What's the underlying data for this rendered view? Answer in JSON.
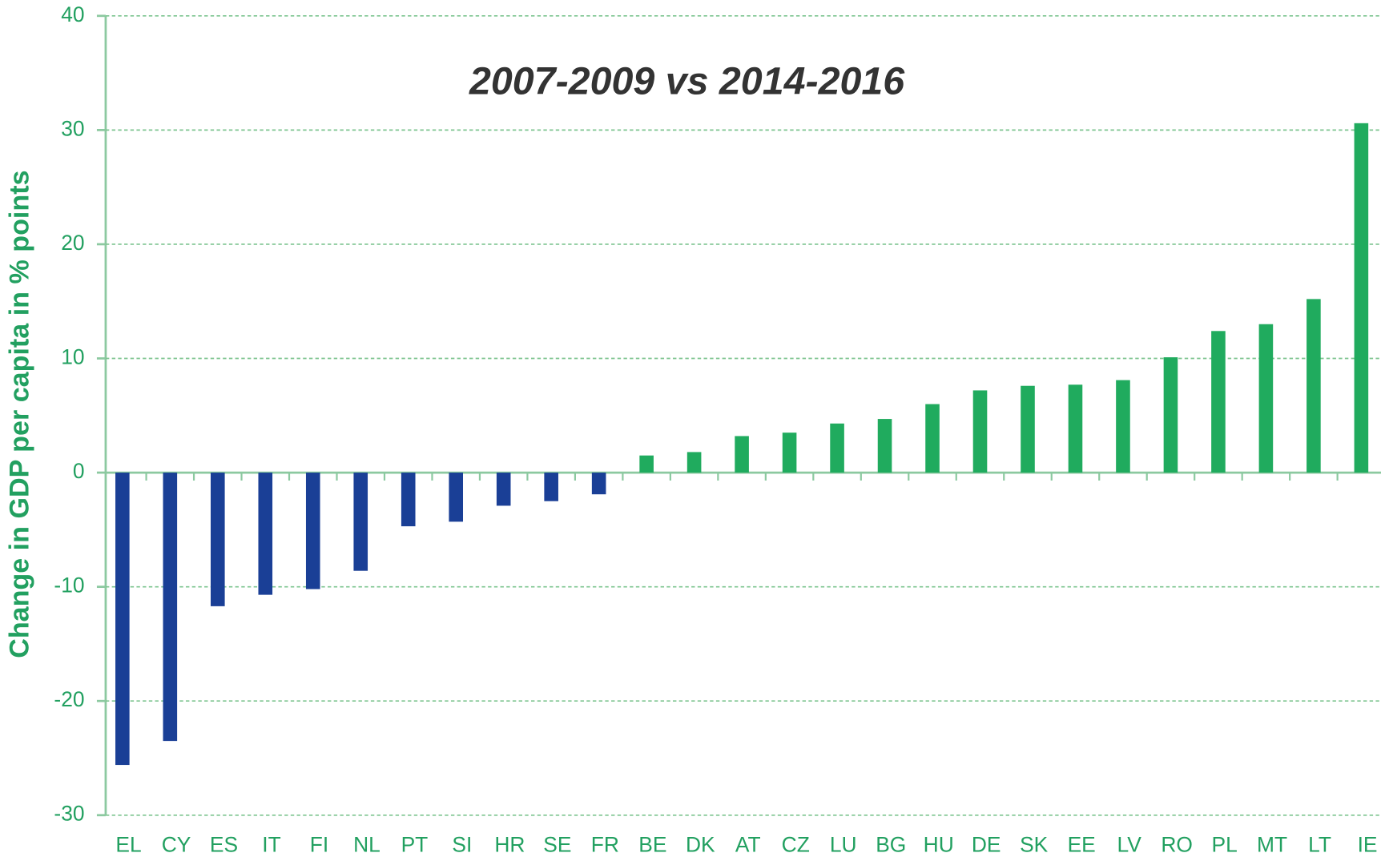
{
  "chart_data": {
    "type": "bar",
    "title": "2007-2009  vs  2014-2016",
    "y_label": "Change in GDP per capita in % points",
    "categories": [
      "EL",
      "CY",
      "ES",
      "IT",
      "FI",
      "NL",
      "PT",
      "SI",
      "HR",
      "SE",
      "FR",
      "BE",
      "DK",
      "AT",
      "CZ",
      "LU",
      "BG",
      "HU",
      "DE",
      "SK",
      "EE",
      "LV",
      "RO",
      "PL",
      "MT",
      "LT",
      "IE"
    ],
    "values": [
      -25.6,
      -23.5,
      -11.7,
      -10.7,
      -10.2,
      -8.6,
      -4.7,
      -4.3,
      -2.9,
      -2.5,
      -1.9,
      1.5,
      1.8,
      3.2,
      3.5,
      4.3,
      4.7,
      6.0,
      7.2,
      7.6,
      7.7,
      8.1,
      10.1,
      12.4,
      13.0,
      15.2,
      30.6
    ],
    "color": "#20ab5e",
    "negative_color": "#1a3f96",
    "ylim": [
      -30,
      40
    ],
    "yticks": [
      -30,
      -20,
      -10,
      0,
      10,
      20,
      30,
      40
    ],
    "grid": true
  }
}
